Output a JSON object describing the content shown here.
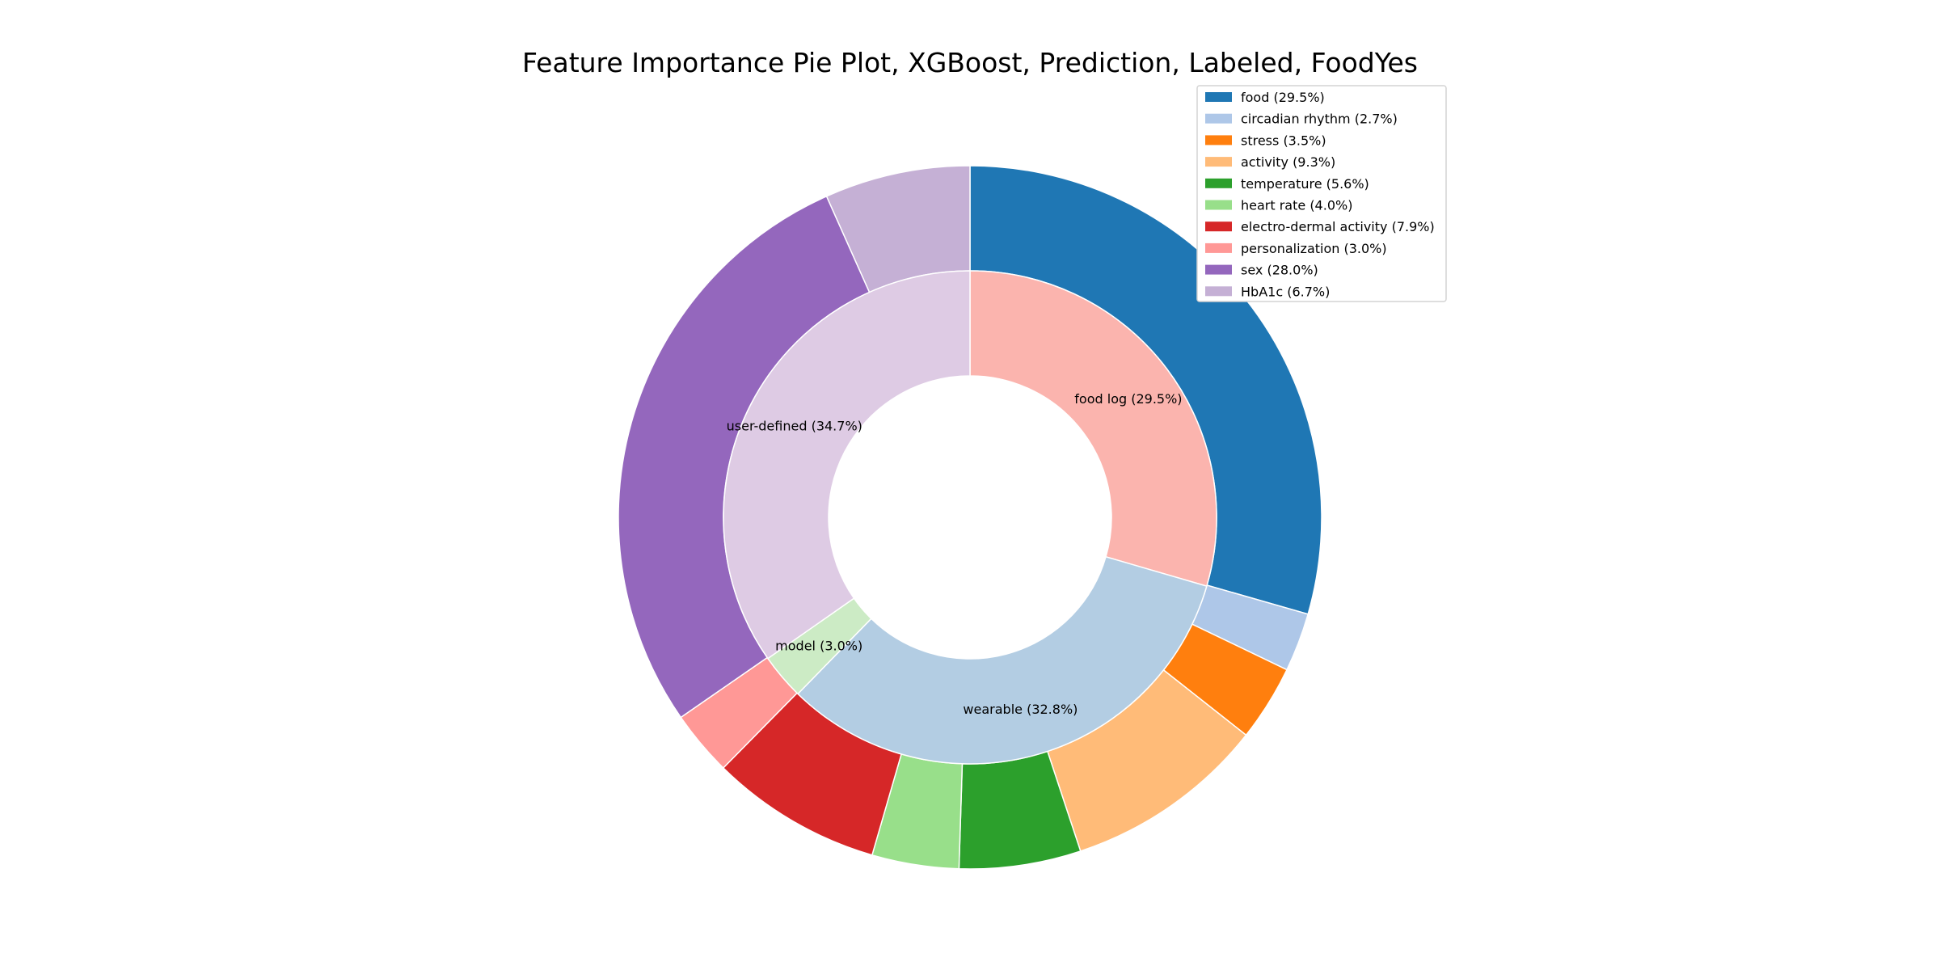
{
  "chart_data": {
    "type": "pie",
    "subtype": "nested-donut",
    "title": "Feature Importance Pie Plot, XGBoost, Prediction, Labeled, FoodYes",
    "outer_ring": [
      {
        "label": "food",
        "value": 29.5,
        "color": "#1f77b4",
        "legend": "food (29.5%)"
      },
      {
        "label": "circadian rhythm",
        "value": 2.7,
        "color": "#aec7e8",
        "legend": "circadian rhythm (2.7%)"
      },
      {
        "label": "stress",
        "value": 3.5,
        "color": "#ff7f0e",
        "legend": "stress (3.5%)"
      },
      {
        "label": "activity",
        "value": 9.3,
        "color": "#ffbb78",
        "legend": "activity (9.3%)"
      },
      {
        "label": "temperature",
        "value": 5.6,
        "color": "#2ca02c",
        "legend": "temperature (5.6%)"
      },
      {
        "label": "heart rate",
        "value": 4.0,
        "color": "#98df8a",
        "legend": "heart rate (4.0%)"
      },
      {
        "label": "electro-dermal activity",
        "value": 7.9,
        "color": "#d62728",
        "legend": "electro-dermal activity (7.9%)"
      },
      {
        "label": "personalization",
        "value": 3.0,
        "color": "#ff9896",
        "legend": "personalization (3.0%)"
      },
      {
        "label": "sex",
        "value": 28.0,
        "color": "#9467bd",
        "legend": "sex (28.0%)"
      },
      {
        "label": "HbA1c",
        "value": 6.7,
        "color": "#c5b0d5",
        "legend": "HbA1c (6.7%)"
      }
    ],
    "inner_ring": [
      {
        "label": "food log",
        "value": 29.5,
        "color": "#fbb4ae",
        "text": "food log (29.5%)"
      },
      {
        "label": "wearable",
        "value": 32.8,
        "color": "#b3cde3",
        "text": "wearable (32.8%)"
      },
      {
        "label": "model",
        "value": 3.0,
        "color": "#ccebc5",
        "text": "model (3.0%)"
      },
      {
        "label": "user-defined",
        "value": 34.7,
        "color": "#decbe4",
        "text": "user-defined (34.7%)"
      }
    ],
    "start_angle": "top, clockwise",
    "legend_position": "top-right"
  }
}
